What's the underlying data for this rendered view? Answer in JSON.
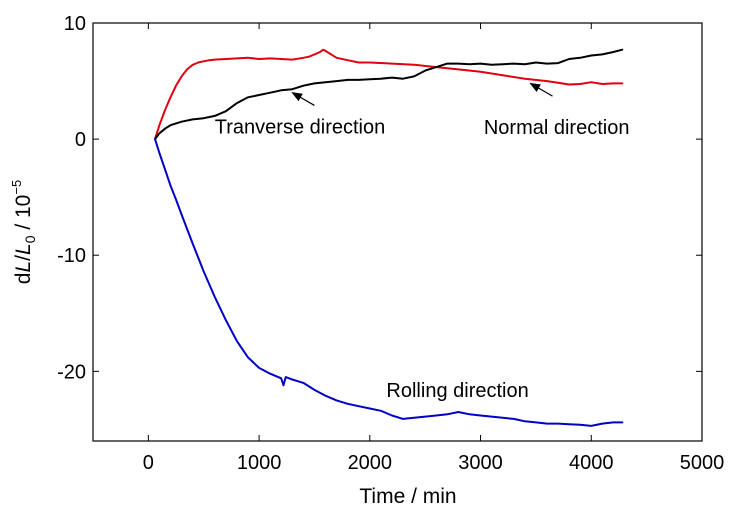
{
  "chart_data": {
    "type": "line",
    "xlabel": "Time / min",
    "ylabel": {
      "prefix": "d",
      "var1": "L",
      "slash": "/",
      "var2": "L",
      "sub": "0",
      "unit": " / 10",
      "exp": "−5"
    },
    "xlim": [
      -500,
      5000
    ],
    "ylim": [
      -26,
      10
    ],
    "x_ticks": [
      0,
      1000,
      2000,
      3000,
      4000,
      5000
    ],
    "y_ticks": [
      10,
      0,
      -10,
      -20
    ],
    "x_tick_labels": [
      "0",
      "1000",
      "2000",
      "3000",
      "4000",
      "5000"
    ],
    "y_tick_labels": [
      "10",
      "0",
      "-10",
      "-20"
    ],
    "grid": false,
    "legend": "none",
    "annotations": [
      {
        "text": "Tranverse direction",
        "anchor": [
          600,
          0.5
        ],
        "arrow_from": [
          1500,
          2.9
        ],
        "arrow_to": [
          1300,
          4.0
        ]
      },
      {
        "text": "Normal direction",
        "anchor": [
          3030,
          0.45
        ],
        "arrow_from": [
          3650,
          3.7
        ],
        "arrow_to": [
          3450,
          4.8
        ]
      },
      {
        "text": "Rolling direction",
        "anchor": [
          2150,
          -22.2
        ]
      }
    ],
    "series": [
      {
        "key": "red",
        "color": "#e0000f",
        "x": [
          60,
          100,
          150,
          200,
          250,
          300,
          350,
          400,
          450,
          500,
          550,
          600,
          700,
          800,
          900,
          1000,
          1100,
          1200,
          1300,
          1400,
          1450,
          1500,
          1550,
          1580,
          1600,
          1650,
          1700,
          1800,
          1900,
          2000,
          2200,
          2400,
          2600,
          2800,
          3000,
          3200,
          3400,
          3600,
          3700,
          3800,
          3900,
          4000,
          4100,
          4200,
          4280
        ],
        "y": [
          0,
          1.2,
          2.5,
          3.6,
          4.6,
          5.4,
          6.0,
          6.4,
          6.6,
          6.7,
          6.8,
          6.85,
          6.9,
          6.95,
          7.0,
          6.9,
          6.95,
          6.9,
          6.85,
          7.0,
          7.1,
          7.3,
          7.5,
          7.7,
          7.6,
          7.3,
          7.0,
          6.8,
          6.6,
          6.6,
          6.5,
          6.4,
          6.2,
          6.0,
          5.8,
          5.5,
          5.2,
          5.0,
          4.85,
          4.7,
          4.75,
          4.9,
          4.75,
          4.8,
          4.8
        ]
      },
      {
        "key": "black",
        "color": "#000000",
        "x": [
          60,
          100,
          150,
          200,
          300,
          400,
          500,
          600,
          700,
          800,
          900,
          1000,
          1100,
          1200,
          1300,
          1400,
          1500,
          1600,
          1700,
          1800,
          1900,
          2000,
          2100,
          2200,
          2300,
          2400,
          2500,
          2600,
          2700,
          2800,
          2900,
          3000,
          3100,
          3200,
          3300,
          3400,
          3500,
          3600,
          3700,
          3800,
          3900,
          4000,
          4100,
          4200,
          4280
        ],
        "y": [
          0,
          0.5,
          0.9,
          1.2,
          1.5,
          1.7,
          1.8,
          2.0,
          2.4,
          3.1,
          3.6,
          3.8,
          4.0,
          4.2,
          4.3,
          4.6,
          4.8,
          4.9,
          5.0,
          5.1,
          5.1,
          5.15,
          5.2,
          5.3,
          5.2,
          5.4,
          5.9,
          6.2,
          6.5,
          6.5,
          6.45,
          6.5,
          6.4,
          6.45,
          6.5,
          6.45,
          6.6,
          6.5,
          6.55,
          6.9,
          7.0,
          7.2,
          7.3,
          7.5,
          7.7
        ]
      },
      {
        "key": "blue",
        "color": "#0000c8",
        "x": [
          60,
          100,
          150,
          200,
          250,
          300,
          400,
          500,
          600,
          700,
          800,
          900,
          1000,
          1100,
          1200,
          1220,
          1240,
          1300,
          1400,
          1500,
          1600,
          1700,
          1800,
          1900,
          2000,
          2100,
          2200,
          2300,
          2400,
          2500,
          2600,
          2700,
          2800,
          2900,
          3000,
          3100,
          3200,
          3300,
          3400,
          3500,
          3600,
          3700,
          3800,
          3900,
          4000,
          4100,
          4200,
          4280
        ],
        "y": [
          0,
          -1.2,
          -2.6,
          -4.0,
          -5.2,
          -6.5,
          -9.0,
          -11.4,
          -13.6,
          -15.6,
          -17.4,
          -18.8,
          -19.7,
          -20.2,
          -20.6,
          -21.2,
          -20.5,
          -20.7,
          -21.0,
          -21.6,
          -22.1,
          -22.5,
          -22.8,
          -23.0,
          -23.2,
          -23.4,
          -23.8,
          -24.1,
          -24.0,
          -23.9,
          -23.8,
          -23.7,
          -23.5,
          -23.7,
          -23.8,
          -23.9,
          -24.0,
          -24.1,
          -24.3,
          -24.4,
          -24.5,
          -24.5,
          -24.55,
          -24.6,
          -24.7,
          -24.5,
          -24.4,
          -24.4
        ]
      }
    ]
  }
}
